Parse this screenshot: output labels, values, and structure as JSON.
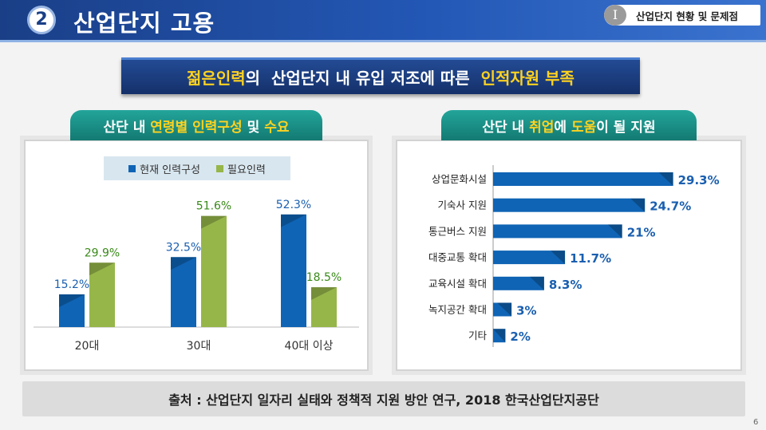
{
  "header": {
    "section_number": "2",
    "title": "산업단지 고용",
    "crumb_number": "I",
    "crumb_text": "산업단지 현황 및 문제점"
  },
  "banner": {
    "part1": "젊은인력",
    "part2": "의  산업단지 내 유입 저조에 따른  ",
    "part3": "인적자원 부족"
  },
  "left_tab": {
    "part1": "산단 내 ",
    "part2": "연령별 인력구성",
    "part3": " 및 ",
    "part4": "수요"
  },
  "right_tab": {
    "part1": "산단 내 ",
    "part2": "취업",
    "part3": "에 ",
    "part4": "도움",
    "part5": "이 될 지원"
  },
  "colors": {
    "blue": "#0f64b5",
    "green": "#96b64a",
    "blue_label": "#1a5fb0",
    "green_label": "#3a8a1a"
  },
  "chart_data": [
    {
      "type": "bar",
      "categories": [
        "20대",
        "30대",
        "40대 이상"
      ],
      "series": [
        {
          "name": "현재 인력구성",
          "values": [
            15.2,
            32.5,
            52.3
          ],
          "labels": [
            "15.2%",
            "32.5%",
            "52.3%"
          ]
        },
        {
          "name": "필요인력",
          "values": [
            29.9,
            51.6,
            18.5
          ],
          "labels": [
            "29.9%",
            "51.6%",
            "18.5%"
          ]
        }
      ]
    },
    {
      "type": "bar",
      "orientation": "horizontal",
      "categories": [
        "상업문화시설",
        "기숙사 지원",
        "통근버스 지원",
        "대중교통 확대",
        "교육시설 확대",
        "녹지공간 확대",
        "기타"
      ],
      "values": [
        29.3,
        24.7,
        21,
        11.7,
        8.3,
        3,
        2
      ],
      "labels": [
        "29.3%",
        "24.7%",
        "21%",
        "11.7%",
        "8.3%",
        "3%",
        "2%"
      ]
    }
  ],
  "source": "출처 : 산업단지 일자리 실태와 정책적 지원 방안 연구, 2018 한국산업단지공단",
  "page_number": "6"
}
